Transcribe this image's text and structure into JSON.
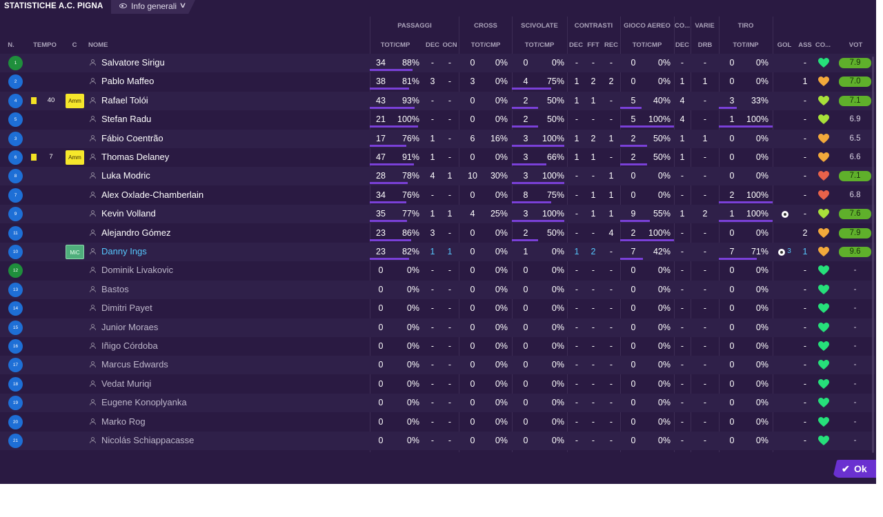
{
  "header": {
    "title": "STATISTICHE A.C. PIGNA",
    "view_label": "Info generali"
  },
  "groups": {
    "passaggi": "PASSAGGI",
    "cross": "CROSS",
    "scivolate": "SCIVOLATE",
    "contrasti": "CONTRASTI",
    "gioco_aereo": "GIOCO AEREO",
    "co": "CO...",
    "varie": "VARIE",
    "tiro": "TIRO"
  },
  "columns": {
    "n": "N.",
    "tempo": "TEMPO",
    "c": "C",
    "nome": "NOME",
    "pass_tot": "TOT/CMP",
    "pass_dec": "DEC",
    "pass_ocn": "OCN",
    "cross_tot": "TOT/CMP",
    "sciv_tot": "TOT/CMP",
    "con_dec": "DEC",
    "con_fft": "FFT",
    "con_rec": "REC",
    "aer_tot": "TOT/CMP",
    "co_dec": "DEC",
    "drb": "DRB",
    "tiro_tot": "TOT/INP",
    "gol": "GOL",
    "ass": "ASS",
    "co2": "CO...",
    "vot": "VOT"
  },
  "players": [
    {
      "num": "1",
      "gk": true,
      "card": false,
      "tempo": "",
      "badge": "",
      "name": "Salvatore Sirigu",
      "p": "34",
      "pp": "88%",
      "pd": "-",
      "po": "-",
      "c": "0",
      "cp": "0%",
      "s": "0",
      "sp": "0%",
      "cd": "-",
      "cf": "-",
      "cr": "-",
      "a": "0",
      "ap": "0%",
      "ad": "-",
      "drb": "-",
      "t": "0",
      "tp": "0%",
      "gol": "",
      "goln": "",
      "ass": "-",
      "heart": "green",
      "vot": "7.9",
      "votg": true
    },
    {
      "num": "2",
      "gk": false,
      "card": false,
      "tempo": "",
      "badge": "",
      "name": "Pablo Maffeo",
      "p": "38",
      "pp": "81%",
      "pd": "3",
      "po": "-",
      "c": "3",
      "cp": "0%",
      "s": "4",
      "sp": "75%",
      "cd": "1",
      "cf": "2",
      "cr": "2",
      "a": "0",
      "ap": "0%",
      "ad": "1",
      "drb": "1",
      "t": "0",
      "tp": "0%",
      "gol": "",
      "goln": "",
      "ass": "1",
      "heart": "orange",
      "vot": "7.0",
      "votg": true
    },
    {
      "num": "4",
      "gk": false,
      "card": true,
      "tempo": "40",
      "badge": "Amm",
      "name": "Rafael Tolói",
      "p": "43",
      "pp": "93%",
      "pd": "-",
      "po": "-",
      "c": "0",
      "cp": "0%",
      "s": "2",
      "sp": "50%",
      "cd": "1",
      "cf": "1",
      "cr": "-",
      "a": "5",
      "ap": "40%",
      "ad": "4",
      "drb": "-",
      "t": "3",
      "tp": "33%",
      "gol": "",
      "goln": "",
      "ass": "-",
      "heart": "yellowgreen",
      "vot": "7.1",
      "votg": true
    },
    {
      "num": "5",
      "gk": false,
      "card": false,
      "tempo": "",
      "badge": "",
      "name": "Stefan Radu",
      "p": "21",
      "pp": "100%",
      "pd": "-",
      "po": "-",
      "c": "0",
      "cp": "0%",
      "s": "2",
      "sp": "50%",
      "cd": "-",
      "cf": "-",
      "cr": "-",
      "a": "5",
      "ap": "100%",
      "ad": "4",
      "drb": "-",
      "t": "1",
      "tp": "100%",
      "gol": "",
      "goln": "",
      "ass": "-",
      "heart": "yellowgreen",
      "vot": "6.9",
      "votg": false
    },
    {
      "num": "3",
      "gk": false,
      "card": false,
      "tempo": "",
      "badge": "",
      "name": "Fábio Coentrão",
      "p": "17",
      "pp": "76%",
      "pd": "1",
      "po": "-",
      "c": "6",
      "cp": "16%",
      "s": "3",
      "sp": "100%",
      "cd": "1",
      "cf": "2",
      "cr": "1",
      "a": "2",
      "ap": "50%",
      "ad": "1",
      "drb": "1",
      "t": "0",
      "tp": "0%",
      "gol": "",
      "goln": "",
      "ass": "-",
      "heart": "orange",
      "vot": "6.5",
      "votg": false
    },
    {
      "num": "6",
      "gk": false,
      "card": true,
      "tempo": "7",
      "badge": "Amm",
      "name": "Thomas Delaney",
      "p": "47",
      "pp": "91%",
      "pd": "1",
      "po": "-",
      "c": "0",
      "cp": "0%",
      "s": "3",
      "sp": "66%",
      "cd": "1",
      "cf": "1",
      "cr": "-",
      "a": "2",
      "ap": "50%",
      "ad": "1",
      "drb": "-",
      "t": "0",
      "tp": "0%",
      "gol": "",
      "goln": "",
      "ass": "-",
      "heart": "orange",
      "vot": "6.6",
      "votg": false
    },
    {
      "num": "8",
      "gk": false,
      "card": false,
      "tempo": "",
      "badge": "",
      "name": "Luka Modric",
      "p": "28",
      "pp": "78%",
      "pd": "4",
      "po": "1",
      "c": "10",
      "cp": "30%",
      "s": "3",
      "sp": "100%",
      "cd": "-",
      "cf": "-",
      "cr": "1",
      "a": "0",
      "ap": "0%",
      "ad": "-",
      "drb": "-",
      "t": "0",
      "tp": "0%",
      "gol": "",
      "goln": "",
      "ass": "-",
      "heart": "red",
      "vot": "7.1",
      "votg": true
    },
    {
      "num": "7",
      "gk": false,
      "card": false,
      "tempo": "",
      "badge": "",
      "name": "Alex Oxlade-Chamberlain",
      "p": "34",
      "pp": "76%",
      "pd": "-",
      "po": "-",
      "c": "0",
      "cp": "0%",
      "s": "8",
      "sp": "75%",
      "cd": "-",
      "cf": "1",
      "cr": "1",
      "a": "0",
      "ap": "0%",
      "ad": "-",
      "drb": "-",
      "t": "2",
      "tp": "100%",
      "gol": "",
      "goln": "",
      "ass": "-",
      "heart": "red",
      "vot": "6.8",
      "votg": false
    },
    {
      "num": "9",
      "gk": false,
      "card": false,
      "tempo": "",
      "badge": "",
      "name": "Kevin Volland",
      "p": "35",
      "pp": "77%",
      "pd": "1",
      "po": "1",
      "c": "4",
      "cp": "25%",
      "s": "3",
      "sp": "100%",
      "cd": "-",
      "cf": "1",
      "cr": "1",
      "a": "9",
      "ap": "55%",
      "ad": "1",
      "drb": "2",
      "t": "1",
      "tp": "100%",
      "gol": "ball",
      "goln": "",
      "ass": "-",
      "heart": "yellowgreen",
      "vot": "7.6",
      "votg": true
    },
    {
      "num": "11",
      "gk": false,
      "card": false,
      "tempo": "",
      "badge": "",
      "name": "Alejandro Gómez",
      "p": "23",
      "pp": "86%",
      "pd": "3",
      "po": "-",
      "c": "0",
      "cp": "0%",
      "s": "2",
      "sp": "50%",
      "cd": "-",
      "cf": "-",
      "cr": "4",
      "a": "2",
      "ap": "100%",
      "ad": "-",
      "drb": "-",
      "t": "0",
      "tp": "0%",
      "gol": "",
      "goln": "",
      "ass": "2",
      "heart": "orange",
      "vot": "7.9",
      "votg": true
    },
    {
      "num": "10",
      "gk": false,
      "card": false,
      "tempo": "",
      "badge": "MiC",
      "name": "Danny Ings",
      "hl": true,
      "p": "23",
      "pp": "82%",
      "pd": "1",
      "po": "1",
      "c": "0",
      "cp": "0%",
      "s": "1",
      "sp": "0%",
      "cd": "1",
      "cf": "2",
      "cr": "-",
      "a": "7",
      "ap": "42%",
      "ad": "-",
      "drb": "-",
      "t": "7",
      "tp": "71%",
      "gol": "ball",
      "goln": "3",
      "ass": "1",
      "heart": "orange",
      "vot": "9.6",
      "votg": true
    },
    {
      "num": "12",
      "gk": true,
      "card": false,
      "tempo": "",
      "badge": "",
      "name": "Dominik Livakovic",
      "sub": true
    },
    {
      "num": "13",
      "gk": false,
      "card": false,
      "tempo": "",
      "badge": "",
      "name": "Bastos",
      "sub": true
    },
    {
      "num": "14",
      "gk": false,
      "card": false,
      "tempo": "",
      "badge": "",
      "name": "Dimitri Payet",
      "sub": true
    },
    {
      "num": "15",
      "gk": false,
      "card": false,
      "tempo": "",
      "badge": "",
      "name": "Junior Moraes",
      "sub": true
    },
    {
      "num": "16",
      "gk": false,
      "card": false,
      "tempo": "",
      "badge": "",
      "name": "Iñigo Córdoba",
      "sub": true
    },
    {
      "num": "17",
      "gk": false,
      "card": false,
      "tempo": "",
      "badge": "",
      "name": "Marcus Edwards",
      "sub": true
    },
    {
      "num": "18",
      "gk": false,
      "card": false,
      "tempo": "",
      "badge": "",
      "name": "Vedat Muriqi",
      "sub": true
    },
    {
      "num": "19",
      "gk": false,
      "card": false,
      "tempo": "",
      "badge": "",
      "name": "Eugene Konoplyanka",
      "sub": true
    },
    {
      "num": "20",
      "gk": false,
      "card": false,
      "tempo": "",
      "badge": "",
      "name": "Marko Rog",
      "sub": true
    },
    {
      "num": "21",
      "gk": false,
      "card": false,
      "tempo": "",
      "badge": "",
      "name": "Nicolás Schiappacasse",
      "sub": true
    }
  ],
  "sub_values": {
    "zero": "0",
    "zero_pct": "0%",
    "dash": "-"
  },
  "ok_button": {
    "label": "Ok"
  },
  "colors": {
    "bg": "#2a1a42",
    "accent": "#6a31d0",
    "bar": "#7a40d8",
    "rating_green": "#5fb02b",
    "heart_green": "#26e07a",
    "heart_orange": "#f2a93b",
    "heart_red": "#e8624a",
    "heart_yellowgreen": "#a8e03a"
  }
}
